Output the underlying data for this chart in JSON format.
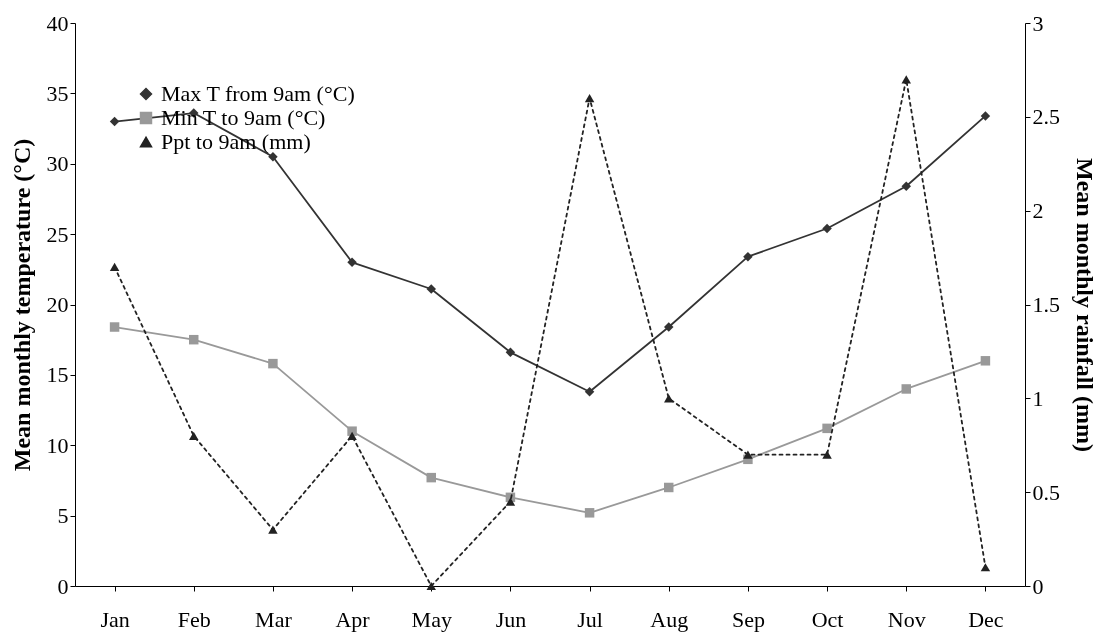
{
  "chart_data": {
    "type": "line",
    "categories": [
      "Jan",
      "Feb",
      "Mar",
      "Apr",
      "May",
      "Jun",
      "Jul",
      "Aug",
      "Sep",
      "Oct",
      "Nov",
      "Dec"
    ],
    "ylabel": "Mean monthly temperature (°C)",
    "y2label": "Mean monthly rainfall (mm)",
    "ylim": [
      0,
      40
    ],
    "yticks": [
      0,
      5,
      10,
      15,
      20,
      25,
      30,
      35,
      40
    ],
    "y2lim": [
      0,
      3
    ],
    "y2ticks": [
      0,
      0.5,
      1,
      1.5,
      2,
      2.5,
      3
    ],
    "grid": false,
    "legend": "top left",
    "series": [
      {
        "name": "Max T from 9am (°C)",
        "color": "#333333",
        "marker": "diamond",
        "line_style": "solid",
        "values": [
          33,
          33.6,
          30.5,
          23,
          21.1,
          16.6,
          13.8,
          18.4,
          23.4,
          25.4,
          28.4,
          33.4
        ]
      },
      {
        "name": "Min T to 9am (°C)",
        "color": "#999999",
        "marker": "square",
        "line_style": "solid",
        "values": [
          18.4,
          17.5,
          15.8,
          11,
          7.7,
          6.3,
          5.2,
          7,
          9,
          11.2,
          14,
          16
        ]
      },
      {
        "name": "Ppt to 9am (mm)",
        "color": "#222222",
        "marker": "triangle",
        "line_style": "dotted",
        "axis": "y2",
        "values": [
          1.7,
          0.8,
          0.3,
          0.8,
          0,
          0.45,
          2.6,
          1,
          0.7,
          0.7,
          2.7,
          0.1
        ]
      }
    ]
  }
}
